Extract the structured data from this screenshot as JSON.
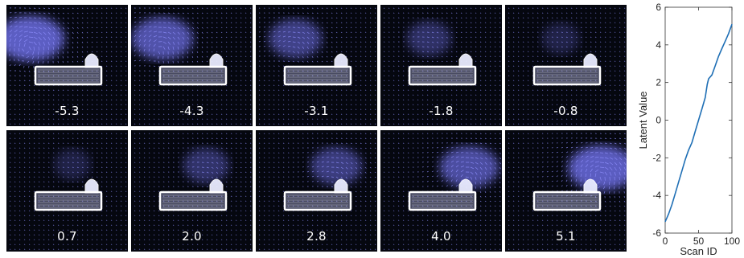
{
  "panels": [
    {
      "label": "-5.3",
      "latent": -5.3
    },
    {
      "label": "-4.3",
      "latent": -4.3
    },
    {
      "label": "-3.1",
      "latent": -3.1
    },
    {
      "label": "-1.8",
      "latent": -1.8
    },
    {
      "label": "-0.8",
      "latent": -0.8
    },
    {
      "label": "0.7",
      "latent": 0.7
    },
    {
      "label": "2.0",
      "latent": 2.0
    },
    {
      "label": "2.8",
      "latent": 2.8
    },
    {
      "label": "4.0",
      "latent": 4.0
    },
    {
      "label": "5.1",
      "latent": 5.1
    }
  ],
  "colors": {
    "arrow": "#8f8fff",
    "glow": "#7a7cff",
    "background": "#05070f",
    "curve": "#1f6fb5"
  },
  "chart_data": {
    "type": "line",
    "xlabel": "Scan ID",
    "ylabel": "Latent Value",
    "xlim": [
      0,
      100
    ],
    "ylim": [
      -6,
      6
    ],
    "xticks": [
      "0",
      "50",
      "100"
    ],
    "yticks": [
      "-6",
      "-4",
      "-2",
      "0",
      "2",
      "4",
      "6"
    ],
    "grid": false,
    "series": [
      {
        "x": [
          0,
          5,
          10,
          15,
          20,
          25,
          30,
          35,
          40,
          45,
          50,
          55,
          60,
          63,
          65,
          70,
          75,
          80,
          85,
          90,
          95,
          100
        ],
        "values": [
          -5.4,
          -5.0,
          -4.5,
          -3.9,
          -3.3,
          -2.7,
          -2.1,
          -1.6,
          -1.2,
          -0.6,
          0.0,
          0.6,
          1.2,
          1.9,
          2.2,
          2.4,
          2.9,
          3.4,
          3.8,
          4.2,
          4.6,
          5.1
        ]
      }
    ]
  }
}
